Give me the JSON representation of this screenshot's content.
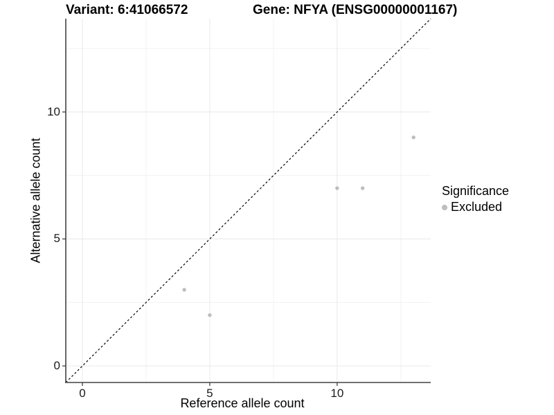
{
  "title": {
    "variant": "Variant: 6:41066572",
    "gene": "Gene: NFYA (ENSG00000001167)"
  },
  "legend": {
    "title": "Significance",
    "items": [
      {
        "label": "Excluded",
        "color": "#bdbdbd"
      }
    ]
  },
  "colors": {
    "point": "#bdbdbd",
    "identity_line": "#000000",
    "axis_line": "#404040",
    "major_grid": "#e8e8e8",
    "minor_grid": "#f2f2f2",
    "tick_text": "#1a1a1a"
  },
  "chart_data": {
    "type": "scatter",
    "title": "Variant: 6:41066572   Gene: NFYA (ENSG00000001167)",
    "xlabel": "Reference allele count",
    "ylabel": "Alternative allele count",
    "xlim": [
      -0.652,
      13.674
    ],
    "ylim": [
      -0.652,
      13.674
    ],
    "x_ticks": [
      0,
      5,
      10
    ],
    "y_ticks": [
      0,
      5,
      10
    ],
    "x_minor": [
      2.5,
      7.5,
      12.5
    ],
    "y_minor": [
      2.5,
      7.5,
      12.5
    ],
    "grid": true,
    "legend_position": "right",
    "legend_title": "Significance",
    "series": [
      {
        "name": "Excluded",
        "color": "#bdbdbd",
        "marker_radius": 2.7,
        "points": [
          [
            4,
            3
          ],
          [
            5,
            2
          ],
          [
            10,
            7
          ],
          [
            11,
            7
          ],
          [
            13,
            9
          ]
        ]
      }
    ],
    "reference_line": {
      "kind": "identity",
      "style": "dashed",
      "color": "#000000",
      "dash": "3 3"
    }
  }
}
